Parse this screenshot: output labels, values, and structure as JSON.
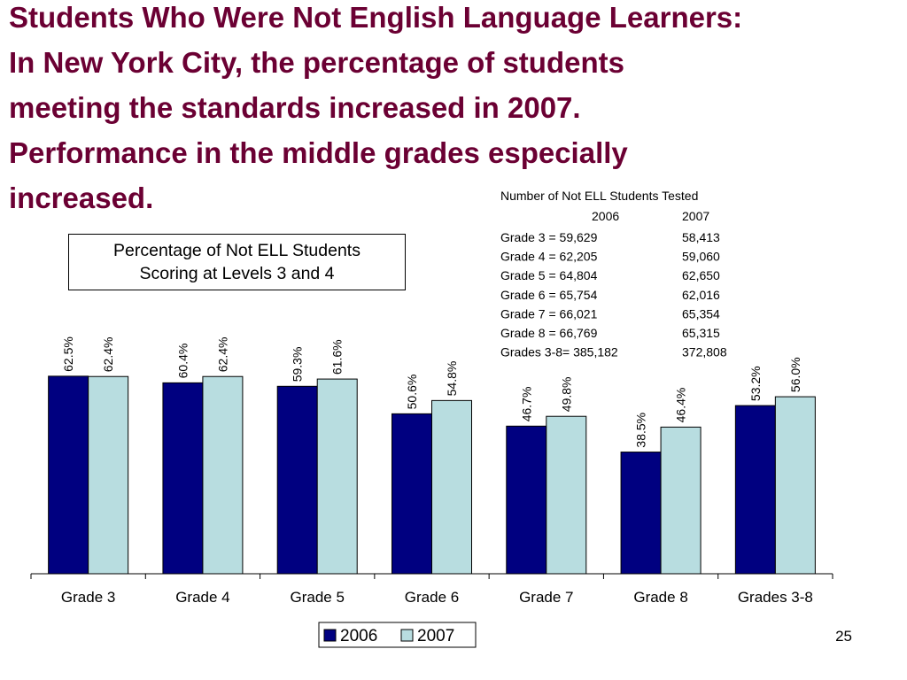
{
  "slide": {
    "title_lines": [
      "Students Who Were Not English Language Learners:",
      "In New York City, the percentage of students",
      "meeting the standards increased in 2007.",
      "Performance in the middle grades especially",
      "increased."
    ],
    "page_number": "25"
  },
  "table": {
    "title": "Number of Not ELL Students Tested",
    "header": [
      "2006",
      "2007"
    ],
    "rows": [
      [
        "Grade 3 = 59,629",
        "58,413"
      ],
      [
        "Grade 4 = 62,205",
        "59,060"
      ],
      [
        "Grade 5 = 64,804",
        "62,650"
      ],
      [
        "Grade 6 = 65,754",
        "62,016"
      ],
      [
        "Grade 7 = 66,021",
        "65,354"
      ],
      [
        "Grade 8 = 66,769",
        "65,315"
      ],
      [
        "Grades 3-8= 385,182",
        "372,808"
      ]
    ]
  },
  "chart_data": {
    "type": "bar",
    "subtitle": "Percentage of Not ELL Students Scoring at Levels 3 and 4",
    "categories": [
      "Grade 3",
      "Grade 4",
      "Grade 5",
      "Grade 6",
      "Grade 7",
      "Grade 8",
      "Grades 3-8"
    ],
    "series": [
      {
        "name": "2006",
        "color": "#000080",
        "values": [
          62.5,
          60.4,
          59.3,
          50.6,
          46.7,
          38.5,
          53.2
        ],
        "value_labels": [
          "62.5%",
          "60.4%",
          "59.3%",
          "50.6%",
          "46.7%",
          "38.5%",
          "53.2%"
        ]
      },
      {
        "name": "2007",
        "color": "#b8dde0",
        "values": [
          62.4,
          62.4,
          61.6,
          54.8,
          49.8,
          46.4,
          56.0
        ],
        "value_labels": [
          "62.4%",
          "62.4%",
          "61.6%",
          "54.8%",
          "49.8%",
          "46.4%",
          "56.0%"
        ]
      }
    ]
  }
}
